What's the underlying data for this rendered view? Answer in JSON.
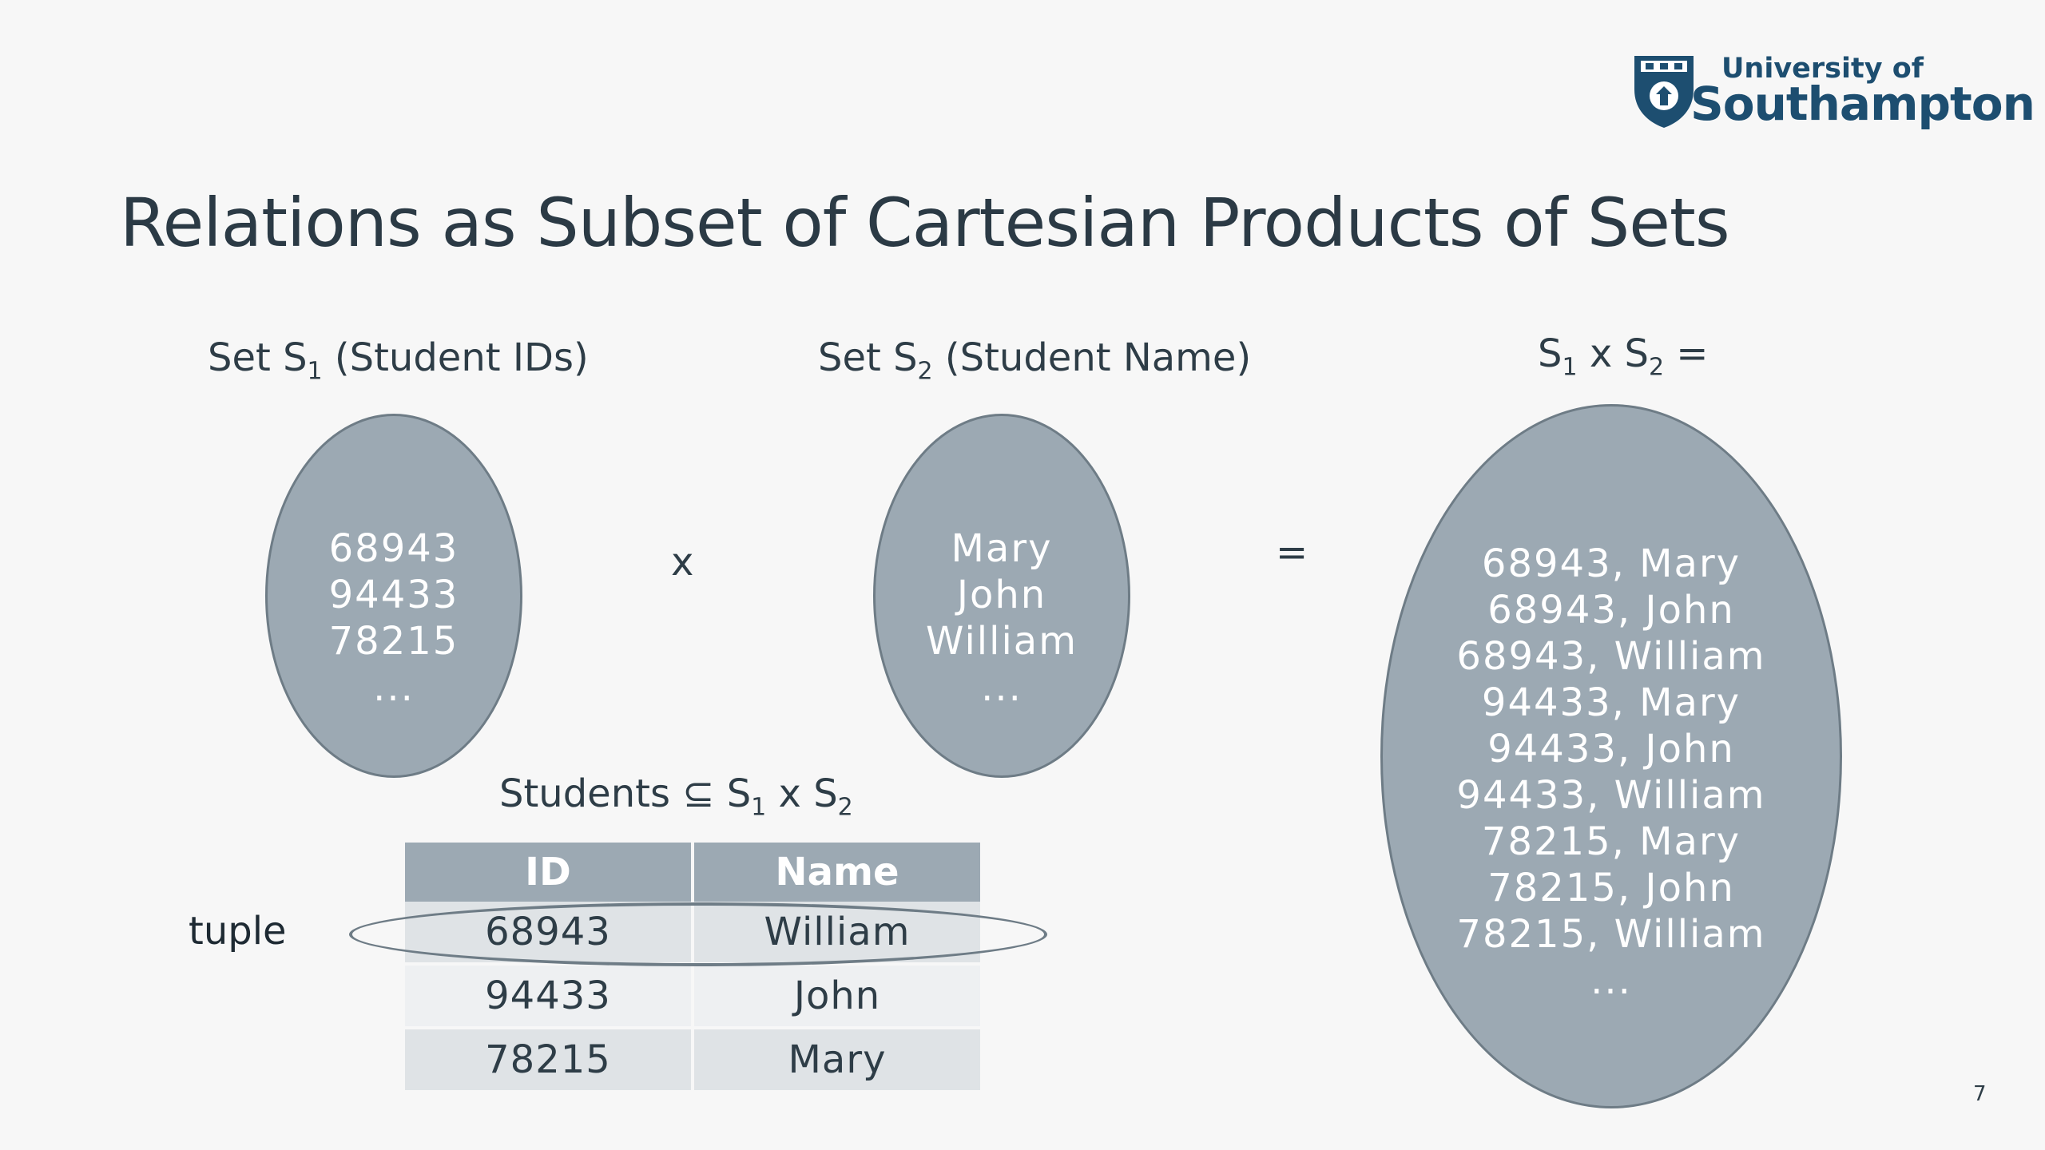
{
  "logo": {
    "line1": "University of",
    "line2": "Southampton"
  },
  "title": "Relations as Subset of Cartesian Products of Sets",
  "set1": {
    "label_pre": "Set S",
    "label_sub": "1",
    "label_post": " (Student IDs)",
    "items": [
      "68943",
      "94433",
      "78215",
      "..."
    ]
  },
  "set2": {
    "label_pre": "Set S",
    "label_sub": "2",
    "label_post": " (Student Name)",
    "items": [
      "Mary",
      "John",
      "William",
      "..."
    ]
  },
  "product": {
    "label_a": "S",
    "sub_a": "1",
    "label_mid": " x S",
    "sub_b": "2",
    "label_end": " =",
    "items": [
      "68943, Mary",
      "68943, John",
      "68943, William",
      "94433, Mary",
      "94433, John",
      "94433, William",
      "78215, Mary",
      "78215, John",
      "78215, William",
      "..."
    ]
  },
  "operators": {
    "times": "x",
    "equals": "="
  },
  "relation": {
    "title_pre": "Students ⊆ S",
    "sub_a": "1",
    "title_mid": " x S",
    "sub_b": "2",
    "columns": [
      "ID",
      "Name"
    ],
    "rows": [
      [
        "68943",
        "William"
      ],
      [
        "94433",
        "John"
      ],
      [
        "78215",
        "Mary"
      ]
    ]
  },
  "tuple_label": "tuple",
  "page_number": "7",
  "colors": {
    "ellipse_fill": "#9ca9b3",
    "title_text": "#2b3a45",
    "logo_blue": "#1d4e70"
  }
}
